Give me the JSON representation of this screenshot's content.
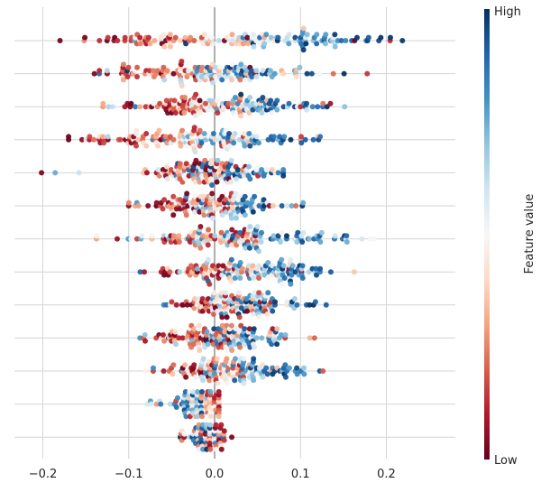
{
  "chart_data": {
    "type": "scatter",
    "subtype": "beeswarm",
    "title": "",
    "xlabel": "",
    "ylabel": "",
    "xlim": [
      -0.23,
      0.29
    ],
    "x_ticks": [
      -0.2,
      -0.1,
      0.0,
      0.1,
      0.2
    ],
    "x_tick_labels": [
      "−0.2",
      "−0.1",
      "0.0",
      "0.1",
      "0.2"
    ],
    "grid": true,
    "zero_line": true,
    "feature_count": 13,
    "features": [
      {
        "row": 1,
        "x_min": -0.18,
        "x_max": 0.26,
        "low_center": -0.1,
        "high_center": 0.15
      },
      {
        "row": 2,
        "x_min": -0.14,
        "x_max": 0.18,
        "low_center": -0.08,
        "high_center": 0.07
      },
      {
        "row": 3,
        "x_min": -0.13,
        "x_max": 0.18,
        "low_center": -0.06,
        "high_center": 0.08
      },
      {
        "row": 4,
        "x_min": -0.17,
        "x_max": 0.19,
        "low_center": -0.11,
        "high_center": 0.07
      },
      {
        "row": 5,
        "x_min": -0.21,
        "x_max": 0.08,
        "low_center": -0.04,
        "high_center": 0.03
      },
      {
        "row": 6,
        "x_min": -0.1,
        "x_max": 0.13,
        "low_center": -0.04,
        "high_center": 0.04
      },
      {
        "row": 7,
        "x_min": -0.15,
        "x_max": 0.19,
        "low_center": -0.02,
        "high_center": 0.08
      },
      {
        "row": 8,
        "x_min": -0.09,
        "x_max": 0.17,
        "low_center": -0.02,
        "high_center": 0.1
      },
      {
        "row": 9,
        "x_min": -0.1,
        "x_max": 0.14,
        "low_center": -0.01,
        "high_center": 0.06
      },
      {
        "row": 10,
        "x_min": -0.12,
        "x_max": 0.12,
        "low_center": -0.03,
        "high_center": 0.04
      },
      {
        "row": 11,
        "x_min": -0.1,
        "x_max": 0.13,
        "low_center": -0.02,
        "high_center": 0.06
      },
      {
        "row": 12,
        "x_min": -0.08,
        "x_max": 0.005,
        "low_center": 0.0,
        "high_center": -0.03
      },
      {
        "row": 13,
        "x_min": -0.04,
        "x_max": 0.02,
        "low_center": 0.0,
        "high_center": -0.01
      }
    ],
    "colorbar": {
      "label": "Feature value",
      "high_label": "High",
      "low_label": "Low",
      "colors": [
        "#67001f",
        "#b2182b",
        "#d6604d",
        "#f4a582",
        "#fddbc7",
        "#f7f7f7",
        "#d1e5f0",
        "#92c5de",
        "#4393c3",
        "#2166ac",
        "#053061"
      ]
    }
  }
}
